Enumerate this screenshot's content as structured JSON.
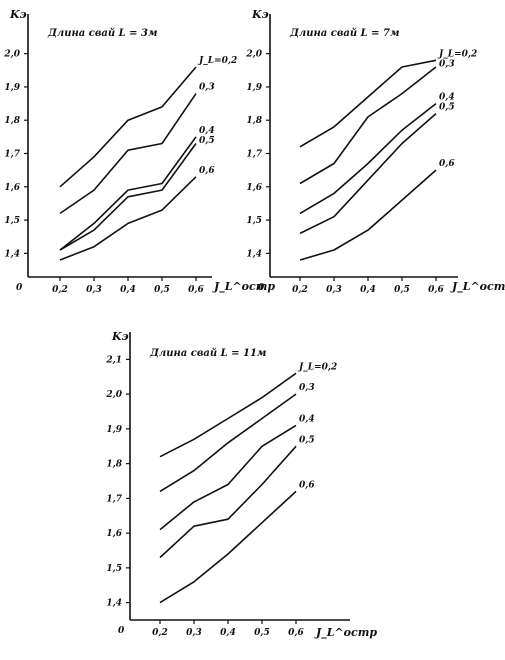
{
  "chart_data": [
    {
      "type": "line",
      "title": "Длина свай L = 3м",
      "ylabel": "Kэ",
      "xlabel": "J_L^остр",
      "origin_label": "0",
      "x": [
        0.2,
        0.3,
        0.4,
        0.5,
        0.6
      ],
      "x_tick_labels": [
        "0,2",
        "0,3",
        "0,4",
        "0,5",
        "0,6"
      ],
      "y_ticks": [
        1.4,
        1.5,
        1.6,
        1.7,
        1.8,
        1.9,
        2.0
      ],
      "y_tick_labels": [
        "1,4",
        "1,5",
        "1,6",
        "1,7",
        "1,8",
        "1,9",
        "2,0"
      ],
      "ylim": [
        1.35,
        2.05
      ],
      "grid": false,
      "series": [
        {
          "name": "J_L=0,2",
          "values": [
            1.6,
            1.69,
            1.8,
            1.84,
            1.96
          ]
        },
        {
          "name": "0,3",
          "values": [
            1.52,
            1.59,
            1.71,
            1.73,
            1.88
          ]
        },
        {
          "name": "0,4",
          "values": [
            1.41,
            1.49,
            1.59,
            1.61,
            1.75
          ]
        },
        {
          "name": "0,5",
          "values": [
            1.41,
            1.47,
            1.57,
            1.59,
            1.73
          ]
        },
        {
          "name": "0,6",
          "values": [
            1.38,
            1.42,
            1.49,
            1.53,
            1.63
          ]
        }
      ]
    },
    {
      "type": "line",
      "title": "Длина свай L = 7м",
      "ylabel": "Kэ",
      "xlabel": "J_L^остр",
      "origin_label": "0",
      "x": [
        0.2,
        0.3,
        0.4,
        0.5,
        0.6
      ],
      "x_tick_labels": [
        "0,2",
        "0,3",
        "0,4",
        "0,5",
        "0,6"
      ],
      "y_ticks": [
        1.4,
        1.5,
        1.6,
        1.7,
        1.8,
        1.9,
        2.0
      ],
      "y_tick_labels": [
        "1,4",
        "1,5",
        "1,6",
        "1,7",
        "1,8",
        "1,9",
        "2,0"
      ],
      "ylim": [
        1.35,
        2.05
      ],
      "grid": false,
      "series": [
        {
          "name": "J_L=0,2",
          "values": [
            1.72,
            1.78,
            1.87,
            1.96,
            1.98
          ]
        },
        {
          "name": "0,3",
          "values": [
            1.61,
            1.67,
            1.81,
            1.88,
            1.96
          ]
        },
        {
          "name": "0,4",
          "values": [
            1.52,
            1.58,
            1.67,
            1.77,
            1.85
          ]
        },
        {
          "name": "0,5",
          "values": [
            1.46,
            1.51,
            1.62,
            1.73,
            1.82
          ]
        },
        {
          "name": "0,6",
          "values": [
            1.38,
            1.41,
            1.47,
            1.56,
            1.65
          ]
        }
      ]
    },
    {
      "type": "line",
      "title": "Длина свай L = 11м",
      "ylabel": "Kэ",
      "xlabel": "J_L^остр",
      "origin_label": "0",
      "x": [
        0.2,
        0.3,
        0.4,
        0.5,
        0.6
      ],
      "x_tick_labels": [
        "0,2",
        "0,3",
        "0,4",
        "0,5",
        "0,6"
      ],
      "y_ticks": [
        1.4,
        1.5,
        1.6,
        1.7,
        1.8,
        1.9,
        2.0,
        2.1
      ],
      "y_tick_labels": [
        "1,4",
        "1,5",
        "1,6",
        "1,7",
        "1,8",
        "1,9",
        "2,0",
        "2,1"
      ],
      "ylim": [
        1.35,
        2.15
      ],
      "grid": false,
      "series": [
        {
          "name": "J_L=0,2",
          "values": [
            1.82,
            1.87,
            1.93,
            1.99,
            2.06
          ]
        },
        {
          "name": "0,3",
          "values": [
            1.72,
            1.78,
            1.86,
            1.93,
            2.0
          ]
        },
        {
          "name": "0,4",
          "values": [
            1.61,
            1.69,
            1.74,
            1.85,
            1.91
          ]
        },
        {
          "name": "0,5",
          "values": [
            1.53,
            1.62,
            1.64,
            1.74,
            1.85
          ]
        },
        {
          "name": "0,6",
          "values": [
            1.4,
            1.46,
            1.54,
            1.63,
            1.72
          ]
        }
      ]
    }
  ]
}
